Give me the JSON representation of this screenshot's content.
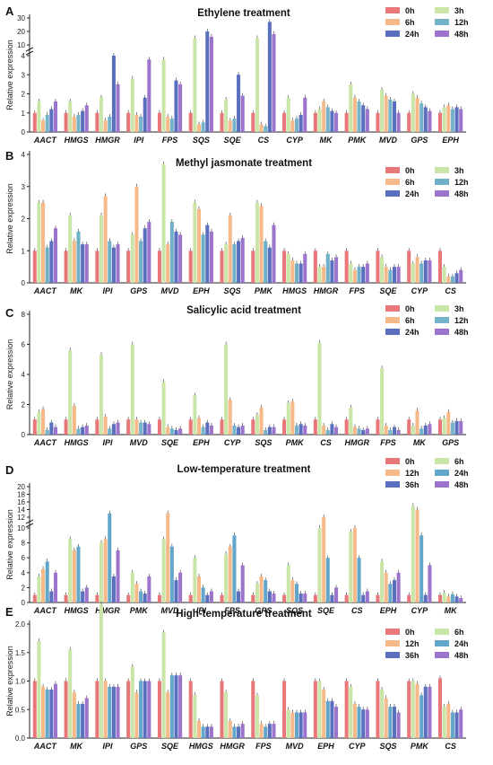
{
  "colors": {
    "0h": "#e8777a",
    "3h": "#c9e6a8",
    "6h": "#f6b98a",
    "12h": "#f6b98a",
    "24h": "#5b6fbf",
    "36h": "#5b6fbf",
    "48h": "#9d74cc",
    "12h_salicylic": "#74b3c9",
    "24h_salicylic": "#5b6fbf",
    "12h_jas": "#6fb0c6",
    "24h_low": "#62a6c9",
    "24h_high": "#62a6c9",
    "6h_low": "#c9e6a8",
    "6h_high": "#c9e6a8",
    "ethylene_12h": "#74b3c9"
  },
  "chart_data": [
    {
      "type": "bar",
      "panel": "A",
      "title": "Ethylene treatment",
      "ylabel": "Relative expression",
      "y_ticks_lower": [
        "0",
        "1",
        "2",
        "3",
        "4"
      ],
      "y_ticks_upper": [
        "10",
        "20",
        "30"
      ],
      "legend": [
        "0h",
        "3h",
        "6h",
        "12h",
        "24h",
        "48h"
      ],
      "categories": [
        "AACT",
        "HMGS",
        "HMGR",
        "IPI",
        "FPS",
        "SQS",
        "SQE",
        "CS",
        "CYP",
        "MK",
        "PMK",
        "MVD",
        "GPS",
        "EPH"
      ],
      "series": [
        {
          "name": "0h",
          "values": [
            1,
            1,
            1,
            1,
            1,
            1,
            1,
            1,
            1,
            1,
            1,
            1,
            1,
            1
          ]
        },
        {
          "name": "3h",
          "values": [
            1.6,
            1.6,
            1.8,
            2.8,
            3.8,
            15,
            1.7,
            15,
            1.8,
            1.2,
            2.5,
            2.2,
            2.0,
            1.3
          ]
        },
        {
          "name": "6h",
          "values": [
            0.6,
            0.8,
            0.6,
            0.9,
            0.8,
            0.4,
            0.6,
            0.4,
            0.6,
            1.6,
            1.8,
            1.9,
            1.8,
            1.4
          ]
        },
        {
          "name": "12h",
          "values": [
            0.9,
            0.9,
            0.8,
            0.8,
            0.7,
            0.5,
            0.7,
            0.3,
            0.7,
            1.3,
            1.6,
            1.7,
            1.5,
            1.2
          ]
        },
        {
          "name": "24h",
          "values": [
            1.2,
            1.1,
            4.0,
            1.8,
            2.7,
            20,
            3.0,
            27,
            0.9,
            1.1,
            1.4,
            1.6,
            1.3,
            1.3
          ]
        },
        {
          "name": "48h",
          "values": [
            1.6,
            1.4,
            2.5,
            3.8,
            2.5,
            16,
            1.9,
            18,
            1.8,
            1.0,
            1.2,
            1.0,
            1.1,
            1.2
          ]
        }
      ]
    },
    {
      "type": "bar",
      "panel": "B",
      "title": "Methyl jasmonate treatment",
      "ylabel": "Relative expression",
      "y_ticks": [
        "0",
        "1",
        "2",
        "3",
        "4"
      ],
      "legend": [
        "0h",
        "3h",
        "6h",
        "12h",
        "24h",
        "48h"
      ],
      "categories": [
        "AACT",
        "MK",
        "IPI",
        "GPS",
        "MVD",
        "EPH",
        "SQS",
        "PMK",
        "HMGS",
        "HMGR",
        "FPS",
        "SQE",
        "CYP",
        "CS"
      ],
      "series": [
        {
          "name": "0h",
          "values": [
            1,
            1,
            1,
            1,
            1,
            1,
            1,
            1,
            1,
            1,
            1,
            1,
            1,
            1
          ]
        },
        {
          "name": "3h",
          "values": [
            2.5,
            2.1,
            2.1,
            1.5,
            3.7,
            2.5,
            1.2,
            2.5,
            0.9,
            0.5,
            0.6,
            0.8,
            0.6,
            0.5
          ]
        },
        {
          "name": "6h",
          "values": [
            2.5,
            1.3,
            2.7,
            3.0,
            1.2,
            2.3,
            2.1,
            2.4,
            0.7,
            0.5,
            0.4,
            0.5,
            0.8,
            0.2
          ]
        },
        {
          "name": "12h",
          "values": [
            1.1,
            1.6,
            1.3,
            1.3,
            1.9,
            1.5,
            1.2,
            1.3,
            0.6,
            0.9,
            0.5,
            0.4,
            0.6,
            0.2
          ]
        },
        {
          "name": "24h",
          "values": [
            1.3,
            1.2,
            1.1,
            1.7,
            1.6,
            1.8,
            1.3,
            1.1,
            0.6,
            0.7,
            0.5,
            0.5,
            0.7,
            0.3
          ]
        },
        {
          "name": "48h",
          "values": [
            1.7,
            1.2,
            1.2,
            1.9,
            1.5,
            1.6,
            1.4,
            1.8,
            0.9,
            0.8,
            0.6,
            0.5,
            0.7,
            0.4
          ]
        }
      ]
    },
    {
      "type": "bar",
      "panel": "C",
      "title": "Salicylic acid treatment",
      "ylabel": "Relative expression",
      "y_ticks": [
        "0",
        "2",
        "4",
        "6",
        "8"
      ],
      "legend": [
        "0h",
        "3h",
        "6h",
        "12h",
        "24h",
        "48h"
      ],
      "categories": [
        "AACT",
        "HMGS",
        "IPI",
        "MVD",
        "SQE",
        "EPH",
        "CYP",
        "SQS",
        "PMK",
        "CS",
        "HMGR",
        "FPS",
        "MK",
        "GPS"
      ],
      "series": [
        {
          "name": "0h",
          "values": [
            1,
            1,
            1,
            1,
            1,
            1,
            1,
            1,
            1,
            1,
            1,
            1,
            1,
            1
          ]
        },
        {
          "name": "3h",
          "values": [
            1.5,
            5.6,
            5.3,
            6.0,
            3.5,
            2.6,
            6.0,
            1.3,
            2.1,
            6.1,
            1.8,
            4.4,
            0.6,
            1.1
          ]
        },
        {
          "name": "6h",
          "values": [
            1.7,
            1.9,
            1.2,
            1.0,
            0.5,
            1.1,
            2.3,
            1.8,
            2.2,
            0.6,
            0.5,
            0.6,
            1.6,
            1.5
          ]
        },
        {
          "name": "12h",
          "values": [
            0.3,
            0.4,
            0.4,
            0.8,
            0.4,
            0.5,
            0.6,
            0.3,
            0.6,
            0.3,
            0.4,
            0.3,
            0.4,
            0.8
          ]
        },
        {
          "name": "24h",
          "values": [
            0.8,
            0.5,
            0.7,
            0.8,
            0.3,
            0.8,
            0.5,
            0.5,
            0.7,
            0.7,
            0.3,
            0.5,
            0.6,
            0.9
          ]
        },
        {
          "name": "48h",
          "values": [
            0.5,
            0.6,
            0.8,
            0.7,
            0.4,
            0.6,
            0.6,
            0.5,
            0.6,
            0.5,
            0.4,
            0.3,
            0.7,
            0.9
          ]
        }
      ]
    },
    {
      "type": "bar",
      "panel": "D",
      "title": "Low-temperature treatment",
      "ylabel": "Relative expression",
      "y_ticks_lower": [
        "0",
        "2",
        "4",
        "6",
        "8",
        "10"
      ],
      "y_ticks_upper": [
        "12",
        "14",
        "16",
        "18",
        "20"
      ],
      "legend": [
        "0h",
        "6h",
        "12h",
        "24h",
        "36h",
        "48h"
      ],
      "categories": [
        "AACT",
        "HMGS",
        "HMGR",
        "PMK",
        "MVD",
        "IPI",
        "FPS",
        "GPS",
        "SQS",
        "SQE",
        "CS",
        "EPH",
        "CYP",
        "MK"
      ],
      "series": [
        {
          "name": "0h",
          "values": [
            1,
            1,
            1,
            1,
            1,
            1,
            1,
            1,
            1,
            1,
            1,
            1,
            1,
            1
          ]
        },
        {
          "name": "6h",
          "values": [
            3.5,
            8.5,
            8.0,
            4.0,
            8.5,
            6.0,
            6.5,
            2.5,
            5.0,
            10,
            9.5,
            5.5,
            15,
            1.3
          ]
        },
        {
          "name": "12h",
          "values": [
            4.5,
            7.0,
            8.5,
            2.5,
            13,
            3.5,
            7.5,
            3.5,
            3.0,
            12,
            10,
            4.0,
            14,
            0.8
          ]
        },
        {
          "name": "24h",
          "values": [
            5.5,
            7.5,
            13,
            1.5,
            7.5,
            2.0,
            9.0,
            3.0,
            2.5,
            6.0,
            6.0,
            2.5,
            9.0,
            1.1
          ]
        },
        {
          "name": "36h",
          "values": [
            1.5,
            1.5,
            3.5,
            1.2,
            3.0,
            1.0,
            1.5,
            1.5,
            1.2,
            1.0,
            1.0,
            3.0,
            1.0,
            0.8
          ]
        },
        {
          "name": "48h",
          "values": [
            4.0,
            2.0,
            7.0,
            3.5,
            4.0,
            1.5,
            5.0,
            1.2,
            1.2,
            2.0,
            1.5,
            4.0,
            5.0,
            0.6
          ]
        }
      ]
    },
    {
      "type": "bar",
      "panel": "E",
      "title": "High-temperature treatment",
      "ylabel": "Relative expression",
      "y_ticks": [
        "0.0",
        "0.5",
        "1.0",
        "1.5",
        "2.0"
      ],
      "legend": [
        "0h",
        "6h",
        "12h",
        "24h",
        "36h",
        "48h"
      ],
      "categories": [
        "AACT",
        "MK",
        "IPI",
        "GPS",
        "SQE",
        "HMGS",
        "HMGR",
        "FPS",
        "MVD",
        "EPH",
        "CYP",
        "SQS",
        "PMK",
        "CS"
      ],
      "series": [
        {
          "name": "0h",
          "values": [
            1.0,
            1.0,
            1.0,
            1.0,
            1.0,
            1.0,
            1.0,
            1.0,
            1.0,
            1.0,
            1.0,
            1.0,
            1.0,
            1.05
          ]
        },
        {
          "name": "6h",
          "values": [
            1.7,
            1.55,
            2.35,
            1.25,
            1.85,
            0.75,
            0.8,
            0.75,
            0.5,
            1.0,
            0.9,
            0.85,
            1.0,
            0.55
          ]
        },
        {
          "name": "12h",
          "values": [
            0.9,
            0.8,
            1.0,
            0.8,
            0.8,
            0.3,
            0.3,
            0.25,
            0.45,
            0.85,
            0.6,
            0.7,
            0.95,
            0.6
          ]
        },
        {
          "name": "24h",
          "values": [
            0.85,
            0.6,
            0.9,
            1.0,
            1.1,
            0.2,
            0.2,
            0.2,
            0.45,
            0.65,
            0.55,
            0.55,
            0.75,
            0.45
          ]
        },
        {
          "name": "36h",
          "values": [
            0.85,
            0.6,
            0.9,
            1.0,
            1.1,
            0.2,
            0.2,
            0.25,
            0.45,
            0.65,
            0.5,
            0.55,
            0.9,
            0.45
          ]
        },
        {
          "name": "48h",
          "values": [
            0.95,
            0.7,
            0.9,
            1.0,
            1.1,
            0.2,
            0.25,
            0.25,
            0.45,
            0.55,
            0.5,
            0.45,
            0.9,
            0.5
          ]
        }
      ]
    }
  ]
}
